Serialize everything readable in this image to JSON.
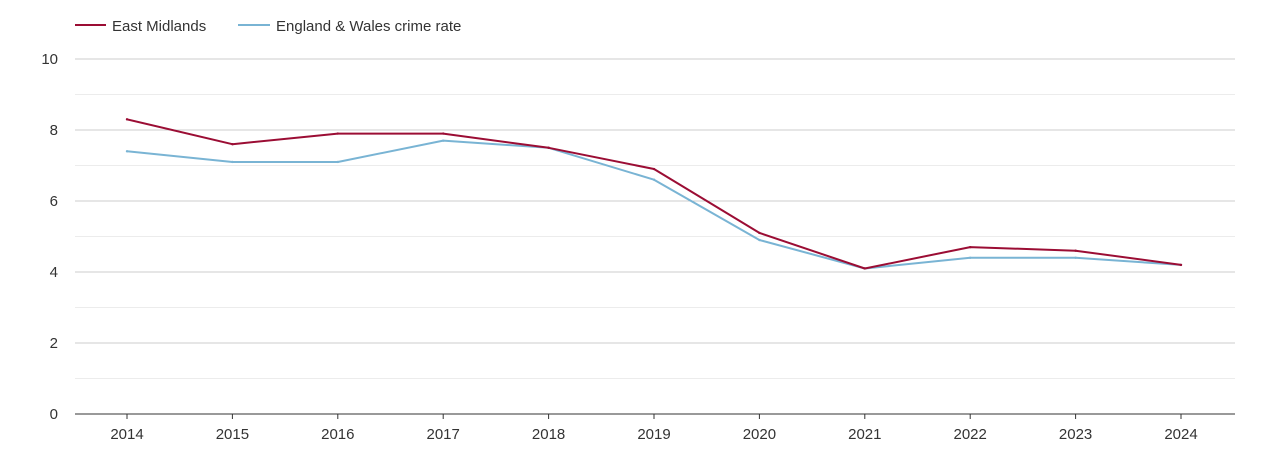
{
  "chart_data": {
    "type": "line",
    "title": "",
    "xlabel": "",
    "ylabel": "",
    "categories": [
      "2014",
      "2015",
      "2016",
      "2017",
      "2018",
      "2019",
      "2020",
      "2021",
      "2022",
      "2023",
      "2024"
    ],
    "ylim": [
      0,
      10
    ],
    "yticks": [
      "0",
      "2",
      "4",
      "6",
      "8",
      "10"
    ],
    "grid": true,
    "legend_position": "top-left",
    "series": [
      {
        "name": "East Midlands",
        "color": "#9b0d34",
        "values": [
          8.3,
          7.6,
          7.9,
          7.9,
          7.5,
          6.9,
          5.1,
          4.1,
          4.7,
          4.6,
          4.2
        ]
      },
      {
        "name": "England & Wales crime rate",
        "color": "#79b4d4",
        "values": [
          7.4,
          7.1,
          7.1,
          7.7,
          7.5,
          6.6,
          4.9,
          4.1,
          4.4,
          4.4,
          4.2
        ]
      }
    ]
  }
}
